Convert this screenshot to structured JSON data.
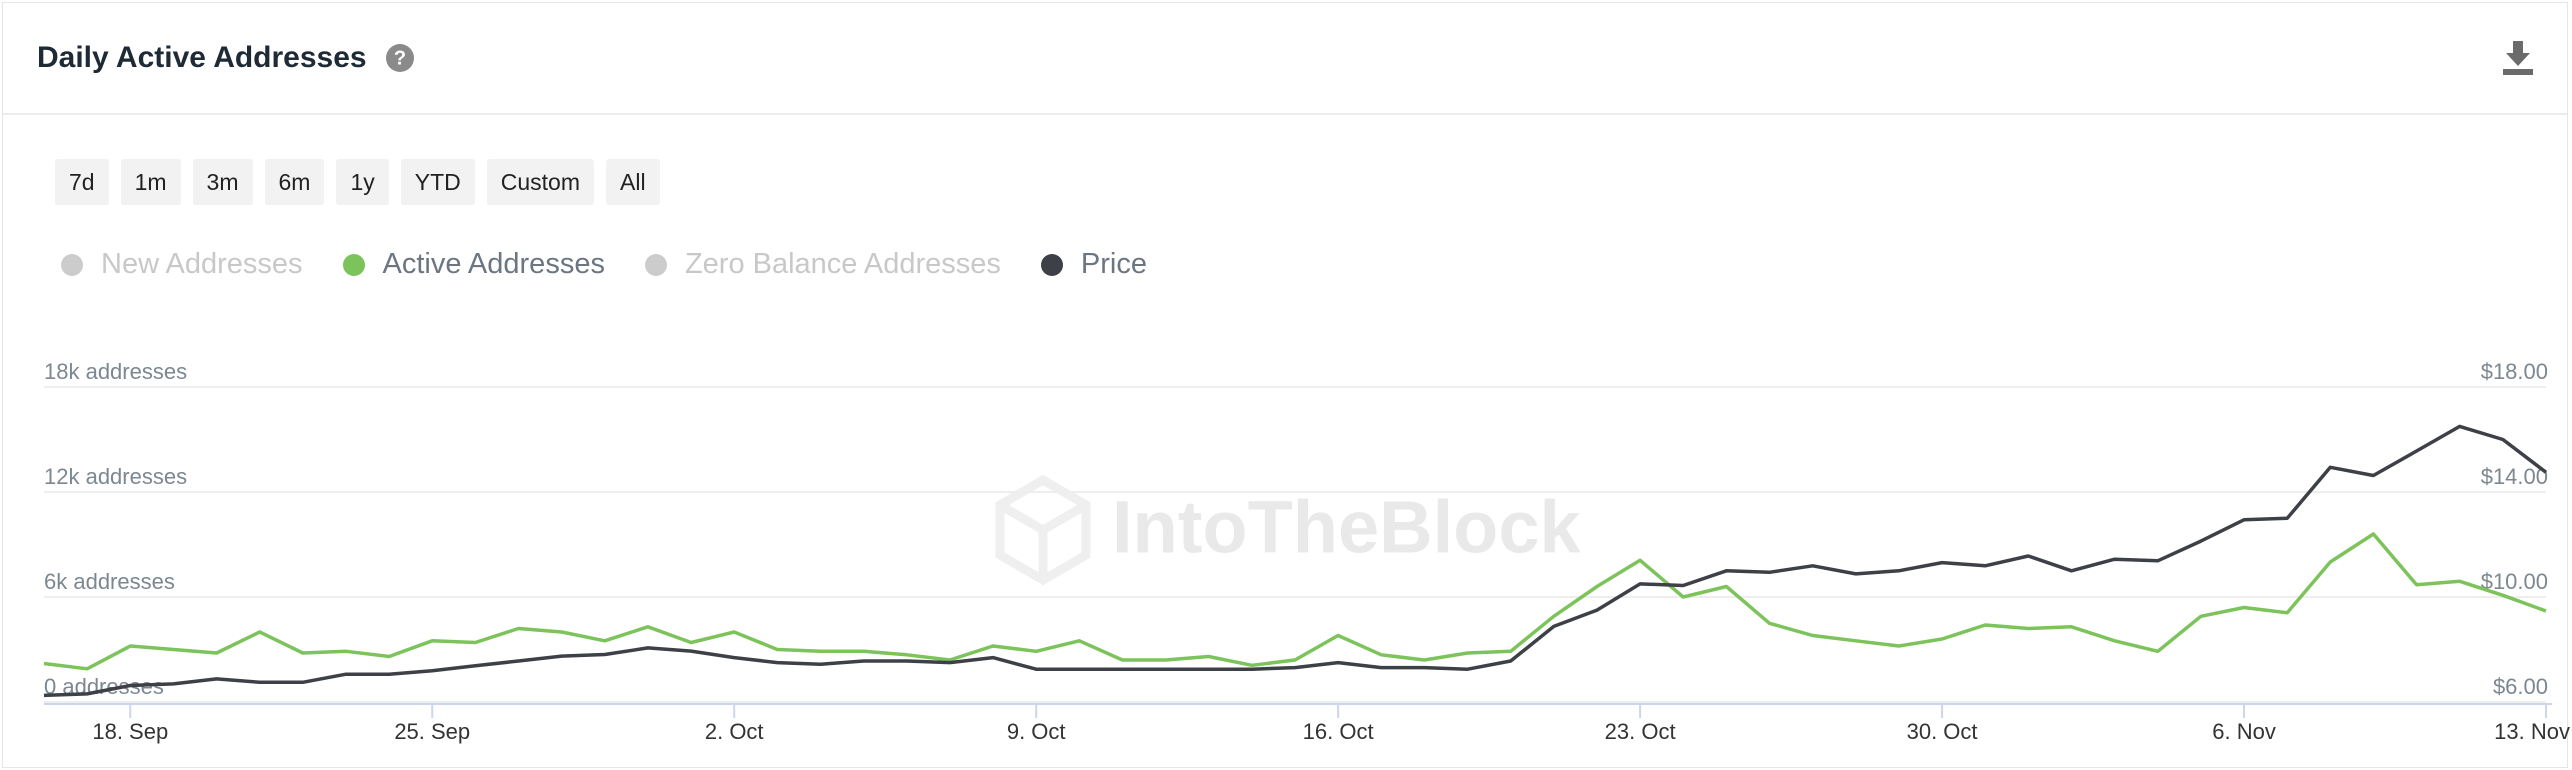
{
  "header": {
    "title": "Daily Active Addresses"
  },
  "range_buttons": [
    "7d",
    "1m",
    "3m",
    "6m",
    "1y",
    "YTD",
    "Custom",
    "All"
  ],
  "chart_data": {
    "type": "line",
    "watermark": "IntoTheBlock",
    "categories": [
      null,
      null,
      "18. Sep",
      null,
      null,
      null,
      null,
      null,
      null,
      "25. Sep",
      null,
      null,
      null,
      null,
      null,
      null,
      "2. Oct",
      null,
      null,
      null,
      null,
      null,
      null,
      "9. Oct",
      null,
      null,
      null,
      null,
      null,
      null,
      "16. Oct",
      null,
      null,
      null,
      null,
      null,
      null,
      "23. Oct",
      null,
      null,
      null,
      null,
      null,
      null,
      "30. Oct",
      null,
      null,
      null,
      null,
      null,
      null,
      "6. Nov",
      null,
      null,
      null,
      null,
      null,
      null,
      "13. Nov"
    ],
    "series": [
      {
        "name": "New Addresses",
        "color": "#cccccc",
        "visible": false
      },
      {
        "name": "Active Addresses",
        "color": "#7dc35b",
        "visible": true,
        "values": [
          2200,
          1900,
          3200,
          3000,
          2800,
          4000,
          2800,
          2900,
          2600,
          3500,
          3400,
          4200,
          4000,
          3500,
          4300,
          3400,
          4000,
          3000,
          2900,
          2900,
          2700,
          2400,
          3200,
          2900,
          3500,
          2400,
          2400,
          2600,
          2100,
          2400,
          3800,
          2700,
          2400,
          2800,
          2900,
          4900,
          6600,
          8100,
          6000,
          6600,
          4500,
          3800,
          3500,
          3200,
          3600,
          4400,
          4200,
          4300,
          3500,
          2900,
          4900,
          5400,
          5100,
          8000,
          9600,
          6700,
          6900,
          6100,
          5200
        ]
      },
      {
        "name": "Zero Balance Addresses",
        "color": "#cccccc",
        "visible": false
      },
      {
        "name": "Price",
        "color": "#3d4046",
        "visible": true,
        "axis": "y2",
        "values": [
          6.25,
          6.31,
          6.63,
          6.69,
          6.88,
          6.75,
          6.75,
          7.06,
          7.06,
          7.19,
          7.38,
          7.56,
          7.75,
          7.81,
          8.06,
          7.94,
          7.69,
          7.5,
          7.44,
          7.56,
          7.56,
          7.5,
          7.69,
          7.25,
          7.25,
          7.25,
          7.25,
          7.25,
          7.25,
          7.31,
          7.5,
          7.31,
          7.31,
          7.25,
          7.56,
          8.88,
          9.5,
          10.5,
          10.44,
          11.0,
          10.94,
          11.19,
          10.88,
          11.0,
          11.31,
          11.19,
          11.56,
          11.0,
          11.44,
          11.38,
          12.13,
          12.94,
          13.0,
          14.94,
          14.63,
          15.56,
          16.5,
          16.0,
          14.75
        ]
      }
    ],
    "ylim": [
      0,
      18000
    ],
    "yticks": [
      {
        "value": 0,
        "label": "0 addresses"
      },
      {
        "value": 6000,
        "label": "6k addresses"
      },
      {
        "value": 12000,
        "label": "12k addresses"
      },
      {
        "value": 18000,
        "label": "18k addresses"
      }
    ],
    "y2lim": [
      6,
      18
    ],
    "y2ticks": [
      {
        "value": 6,
        "label": "$6.00"
      },
      {
        "value": 10,
        "label": "$10.00"
      },
      {
        "value": 14,
        "label": "$14.00"
      },
      {
        "value": 18,
        "label": "$18.00"
      }
    ],
    "grid": true
  }
}
